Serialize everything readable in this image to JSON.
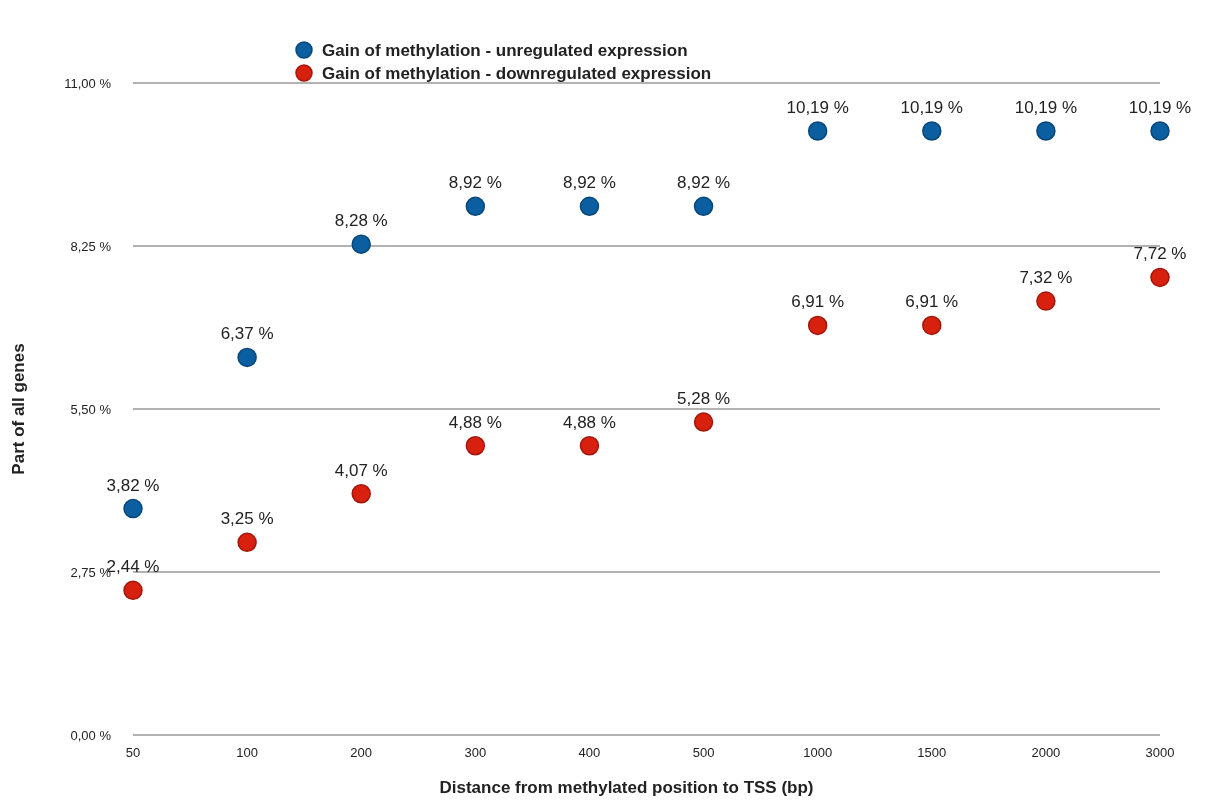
{
  "chart_data": {
    "type": "scatter",
    "xlabel": "Distance from methylated position to TSS (bp)",
    "ylabel": "Part of all genes",
    "categories": [
      "50",
      "100",
      "200",
      "300",
      "400",
      "500",
      "1000",
      "1500",
      "2000",
      "3000"
    ],
    "ylim": [
      0,
      11
    ],
    "yticks": [
      {
        "value": 0,
        "label": "0,00 %"
      },
      {
        "value": 2.75,
        "label": "2,75 %"
      },
      {
        "value": 5.5,
        "label": "5,50 %"
      },
      {
        "value": 8.25,
        "label": "8,25 %"
      },
      {
        "value": 11,
        "label": "11,00 %"
      }
    ],
    "grid": "y",
    "legend": "top",
    "marker": "circle",
    "series": [
      {
        "name": "Gain of methylation - unregulated expression",
        "color": "#0b5fa0",
        "values": [
          3.82,
          6.37,
          8.28,
          8.92,
          8.92,
          8.92,
          10.19,
          10.19,
          10.19,
          10.19
        ],
        "value_labels": [
          "3,82 %",
          "6,37 %",
          "8,28 %",
          "8,92 %",
          "8,92 %",
          "8,92 %",
          "10,19 %",
          "10,19 %",
          "10,19 %",
          "10,19 %"
        ]
      },
      {
        "name": "Gain of methylation - downregulated expression",
        "color": "#d8200f",
        "values": [
          2.44,
          3.25,
          4.07,
          4.88,
          4.88,
          5.28,
          6.91,
          6.91,
          7.32,
          7.72
        ],
        "value_labels": [
          "2,44 %",
          "3,25 %",
          "4,07 %",
          "4,88 %",
          "4,88 %",
          "5,28 %",
          "6,91 %",
          "6,91 %",
          "7,32 %",
          "7,72 %"
        ]
      }
    ]
  }
}
